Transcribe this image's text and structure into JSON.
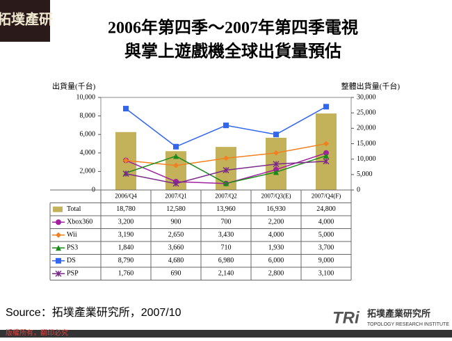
{
  "header": {
    "logo": "拓墣產研"
  },
  "chart_data": {
    "type": "bar",
    "title": [
      "2006年第四季～2007年第四季電視",
      "與掌上遊戲機全球出貨量預估"
    ],
    "y_label": "出貨量(千台)",
    "y2_label": "整體出貨量(千台)",
    "categories": [
      "2006/Q4",
      "2007/Q1",
      "2007/Q2",
      "2007/Q3(E)",
      "2007/Q4(F)"
    ],
    "ylim": [
      0,
      10000
    ],
    "yticks": [
      0,
      {
        "value": 2000,
        "label": "2,000"
      },
      {
        "value": 4000,
        "label": "4,000"
      },
      {
        "value": 6000,
        "label": "6,000"
      },
      {
        "value": 8000,
        "label": "8,000"
      },
      {
        "value": 10000,
        "label": "10,000"
      }
    ],
    "y2lim": [
      0,
      30000
    ],
    "y2ticks": [
      0,
      {
        "value": 5000,
        "label": "5,000"
      },
      {
        "value": 10000,
        "label": "10,000"
      },
      {
        "value": 15000,
        "label": "15,000"
      },
      {
        "value": 20000,
        "label": "20,000"
      },
      {
        "value": 25000,
        "label": "25,000"
      },
      {
        "value": 30000,
        "label": "30,000"
      }
    ],
    "series": [
      {
        "name": "Total",
        "type": "bar",
        "axis": "y2",
        "color": "#c4b25a",
        "values": [
          18780,
          12580,
          13960,
          16930,
          24800
        ],
        "value_labels": [
          "18,780",
          "12,580",
          "13,960",
          "16,930",
          "24,800"
        ]
      },
      {
        "name": "Xbox360",
        "type": "line",
        "marker": "circle",
        "color": "#a020a0",
        "values": [
          3200,
          900,
          700,
          2200,
          4000
        ],
        "value_labels": [
          "3,200",
          "900",
          "700",
          "2,200",
          "4,000"
        ]
      },
      {
        "name": "Wii",
        "type": "line",
        "marker": "diamond",
        "color": "#f08020",
        "values": [
          3190,
          2650,
          3430,
          4000,
          5000
        ],
        "value_labels": [
          "3,190",
          "2,650",
          "3,430",
          "4,000",
          "5,000"
        ]
      },
      {
        "name": "PS3",
        "type": "line",
        "marker": "triangle",
        "color": "#1a8a1a",
        "values": [
          1840,
          3660,
          710,
          1930,
          3700
        ],
        "value_labels": [
          "1,840",
          "3,660",
          "710",
          "1,930",
          "3,700"
        ]
      },
      {
        "name": "DS",
        "type": "line",
        "marker": "square",
        "color": "#3366ee",
        "values": [
          8790,
          4680,
          6980,
          6000,
          9000
        ],
        "value_labels": [
          "8,790",
          "4,680",
          "6,980",
          "6,000",
          "9,000"
        ]
      },
      {
        "name": "PSP",
        "type": "line",
        "marker": "star",
        "color": "#7a2a8a",
        "values": [
          1760,
          690,
          2140,
          2800,
          3100
        ],
        "value_labels": [
          "1,760",
          "690",
          "2,140",
          "2,800",
          "3,100"
        ]
      }
    ]
  },
  "source": "Source：拓墣產業研究所，2007/10",
  "footer": {
    "copyright": "版權所有，翻印必究",
    "brand": "TRi",
    "institute": "拓墣產業研究所",
    "institute_en": "TOPOLOGY RESEARCH INSTITUTE"
  }
}
